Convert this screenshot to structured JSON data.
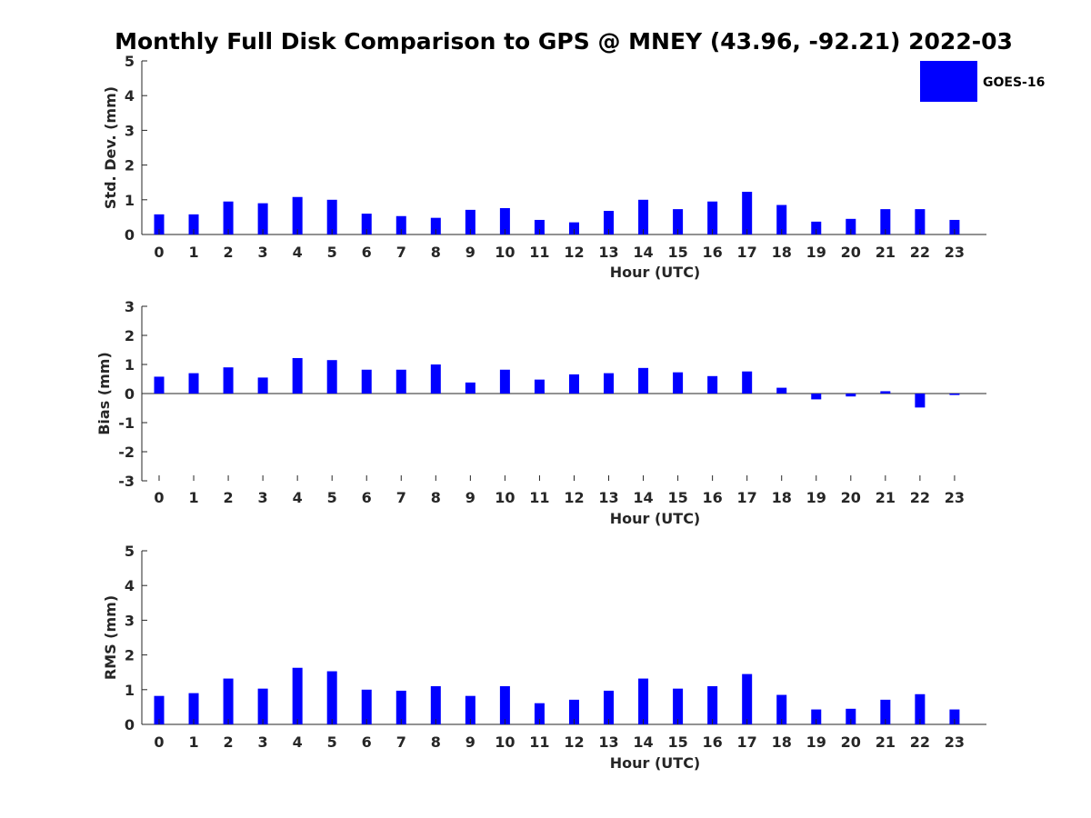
{
  "title": "Monthly Full Disk Comparison to GPS @ MNEY (43.96, -92.21) 2022-03",
  "legend": {
    "label": "GOES-16",
    "color": "#0000ff",
    "placement": "top-right"
  },
  "chart_data": [
    {
      "type": "bar",
      "xlabel": "Hour (UTC)",
      "ylabel": "Std. Dev. (mm)",
      "ylim": [
        0,
        5
      ],
      "yticks": [
        0,
        1,
        2,
        3,
        4,
        5
      ],
      "categories": [
        "0",
        "1",
        "2",
        "3",
        "4",
        "5",
        "6",
        "7",
        "8",
        "9",
        "10",
        "11",
        "12",
        "13",
        "14",
        "15",
        "16",
        "17",
        "18",
        "19",
        "20",
        "21",
        "22",
        "23"
      ],
      "series": [
        {
          "name": "GOES-16",
          "color": "#0000ff",
          "values": [
            0.58,
            0.58,
            0.95,
            0.9,
            1.08,
            1.0,
            0.6,
            0.53,
            0.48,
            0.71,
            0.76,
            0.42,
            0.35,
            0.68,
            1.0,
            0.73,
            0.95,
            1.23,
            0.85,
            0.37,
            0.45,
            0.73,
            0.73,
            0.42
          ]
        }
      ]
    },
    {
      "type": "bar",
      "xlabel": "Hour (UTC)",
      "ylabel": "Bias (mm)",
      "ylim": [
        -3,
        3
      ],
      "yticks": [
        -3,
        -2,
        -1,
        0,
        1,
        2,
        3
      ],
      "categories": [
        "0",
        "1",
        "2",
        "3",
        "4",
        "5",
        "6",
        "7",
        "8",
        "9",
        "10",
        "11",
        "12",
        "13",
        "14",
        "15",
        "16",
        "17",
        "18",
        "19",
        "20",
        "21",
        "22",
        "23"
      ],
      "series": [
        {
          "name": "GOES-16",
          "color": "#0000ff",
          "values": [
            0.58,
            0.7,
            0.9,
            0.55,
            1.22,
            1.15,
            0.82,
            0.82,
            1.0,
            0.38,
            0.82,
            0.48,
            0.66,
            0.7,
            0.88,
            0.73,
            0.6,
            0.76,
            0.2,
            -0.2,
            -0.1,
            0.08,
            -0.48,
            -0.05
          ]
        }
      ]
    },
    {
      "type": "bar",
      "xlabel": "Hour (UTC)",
      "ylabel": "RMS (mm)",
      "ylim": [
        0,
        5
      ],
      "yticks": [
        0,
        1,
        2,
        3,
        4,
        5
      ],
      "categories": [
        "0",
        "1",
        "2",
        "3",
        "4",
        "5",
        "6",
        "7",
        "8",
        "9",
        "10",
        "11",
        "12",
        "13",
        "14",
        "15",
        "16",
        "17",
        "18",
        "19",
        "20",
        "21",
        "22",
        "23"
      ],
      "series": [
        {
          "name": "GOES-16",
          "color": "#0000ff",
          "values": [
            0.82,
            0.9,
            1.32,
            1.03,
            1.63,
            1.53,
            1.0,
            0.97,
            1.1,
            0.82,
            1.1,
            0.61,
            0.71,
            0.97,
            1.32,
            1.03,
            1.1,
            1.45,
            0.85,
            0.43,
            0.45,
            0.71,
            0.87,
            0.43
          ]
        }
      ]
    }
  ]
}
